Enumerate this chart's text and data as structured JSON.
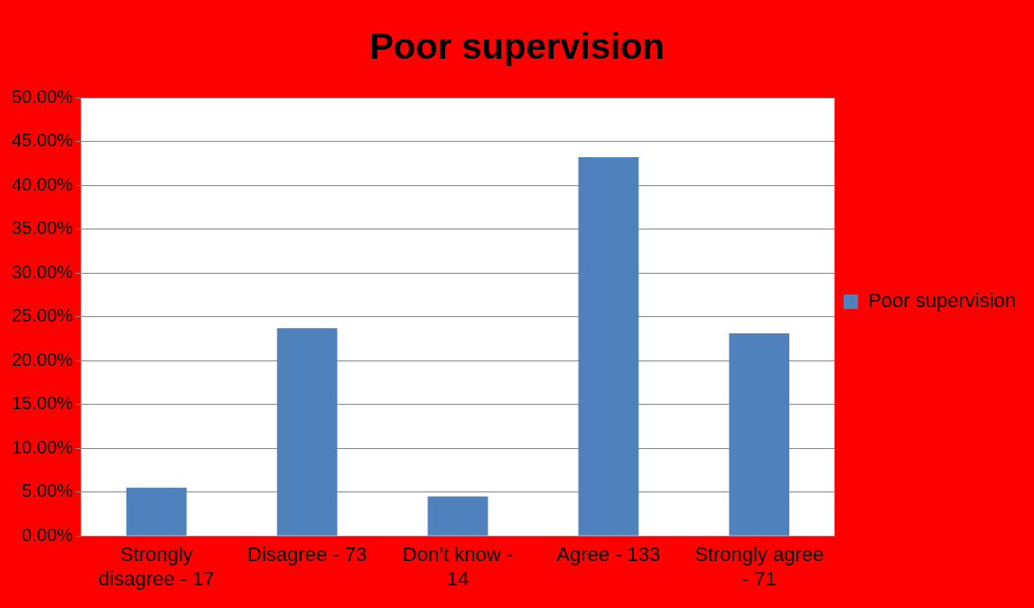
{
  "chart_data": {
    "type": "bar",
    "title": "Poor supervision",
    "categories": [
      "Strongly disagree - 17",
      "Disagree - 73",
      "Don’t know - 14",
      "Agree - 133",
      "Strongly agree - 71"
    ],
    "series": [
      {
        "name": "Poor supervision",
        "color": "#4f81bd",
        "values": [
          5.5,
          23.7,
          4.5,
          43.2,
          23.1
        ]
      }
    ],
    "ylim": [
      0,
      50
    ],
    "yticks": [
      {
        "value": 0,
        "label": "0.00%"
      },
      {
        "value": 5,
        "label": "5.00%"
      },
      {
        "value": 10,
        "label": "10.00%"
      },
      {
        "value": 15,
        "label": "15.00%"
      },
      {
        "value": 20,
        "label": "20.00%"
      },
      {
        "value": 25,
        "label": "25.00%"
      },
      {
        "value": 30,
        "label": "30.00%"
      },
      {
        "value": 35,
        "label": "35.00%"
      },
      {
        "value": 40,
        "label": "40.00%"
      },
      {
        "value": 45,
        "label": "45.00%"
      },
      {
        "value": 50,
        "label": "50.00%"
      }
    ],
    "grid": "y",
    "legend": "right"
  }
}
